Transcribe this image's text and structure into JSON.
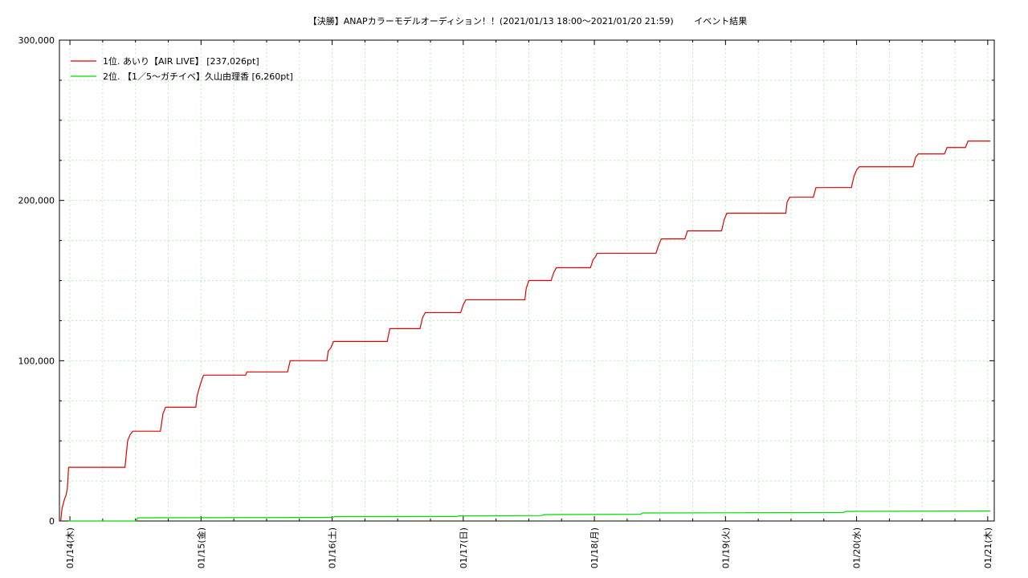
{
  "chart_data": {
    "type": "line",
    "title": "【決勝】ANAPカラーモデルオーディション！！(2021/01/13 18:00〜2021/01/20 21:59)　　 イベント結果",
    "xlabel": "",
    "ylabel": "",
    "ylim": [
      0,
      300000
    ],
    "yticks": [
      "0",
      "100,000",
      "200,000",
      "300,000"
    ],
    "xticks": [
      {
        "label": "01/14(木)",
        "day": 0
      },
      {
        "label": "01/15(金)",
        "day": 1
      },
      {
        "label": "01/16(土)",
        "day": 2
      },
      {
        "label": "01/17(日)",
        "day": 3
      },
      {
        "label": "01/18(月)",
        "day": 4
      },
      {
        "label": "01/19(火)",
        "day": 5
      },
      {
        "label": "01/20(水)",
        "day": 6
      },
      {
        "label": "01/21(木)",
        "day": 7
      }
    ],
    "xlim_days": [
      -0.08,
      7.05
    ],
    "grid": true,
    "legend_position": "top-left",
    "series": [
      {
        "name": "1位. あいり【AIR LIVE】 [237,026pt]",
        "color": "#e00000",
        "points": [
          [
            -0.07,
            0
          ],
          [
            -0.06,
            8000
          ],
          [
            -0.04,
            14000
          ],
          [
            -0.03,
            16000
          ],
          [
            -0.02,
            20000
          ],
          [
            -0.01,
            33500
          ],
          [
            0.42,
            33500
          ],
          [
            0.44,
            50000
          ],
          [
            0.46,
            54000
          ],
          [
            0.48,
            56000
          ],
          [
            0.69,
            56000
          ],
          [
            0.71,
            67000
          ],
          [
            0.73,
            71000
          ],
          [
            0.96,
            71000
          ],
          [
            0.97,
            78000
          ],
          [
            0.99,
            84000
          ],
          [
            1.01,
            89000
          ],
          [
            1.02,
            91000
          ],
          [
            1.34,
            91000
          ],
          [
            1.35,
            93000
          ],
          [
            1.66,
            93000
          ],
          [
            1.68,
            100000
          ],
          [
            1.96,
            100000
          ],
          [
            1.97,
            106000
          ],
          [
            1.99,
            108000
          ],
          [
            2.01,
            112000
          ],
          [
            2.42,
            112000
          ],
          [
            2.44,
            120000
          ],
          [
            2.67,
            120000
          ],
          [
            2.69,
            127000
          ],
          [
            2.71,
            130000
          ],
          [
            2.98,
            130000
          ],
          [
            3.0,
            135000
          ],
          [
            3.02,
            138000
          ],
          [
            3.47,
            138000
          ],
          [
            3.48,
            145000
          ],
          [
            3.5,
            150000
          ],
          [
            3.67,
            150000
          ],
          [
            3.69,
            155000
          ],
          [
            3.71,
            158000
          ],
          [
            3.97,
            158000
          ],
          [
            3.99,
            163000
          ],
          [
            4.01,
            165000
          ],
          [
            4.02,
            167000
          ],
          [
            4.47,
            167000
          ],
          [
            4.49,
            172000
          ],
          [
            4.51,
            176000
          ],
          [
            4.69,
            176000
          ],
          [
            4.71,
            181000
          ],
          [
            4.97,
            181000
          ],
          [
            4.99,
            188000
          ],
          [
            5.01,
            192000
          ],
          [
            5.46,
            192000
          ],
          [
            5.47,
            199000
          ],
          [
            5.49,
            202000
          ],
          [
            5.67,
            202000
          ],
          [
            5.69,
            208000
          ],
          [
            5.96,
            208000
          ],
          [
            5.98,
            215000
          ],
          [
            6.0,
            219000
          ],
          [
            6.02,
            221000
          ],
          [
            6.43,
            221000
          ],
          [
            6.45,
            227000
          ],
          [
            6.47,
            229000
          ],
          [
            6.67,
            229000
          ],
          [
            6.69,
            233000
          ],
          [
            6.83,
            233000
          ],
          [
            6.85,
            237026
          ],
          [
            7.02,
            237026
          ]
        ]
      },
      {
        "name": "2位. 【1／5〜ガチイベ】久山由理香 [6,260pt]",
        "color": "#00dd00",
        "points": [
          [
            -0.01,
            0
          ],
          [
            0.5,
            0
          ],
          [
            0.52,
            2000
          ],
          [
            1.9,
            2200
          ],
          [
            2.0,
            2300
          ],
          [
            2.02,
            2700
          ],
          [
            2.95,
            2800
          ],
          [
            2.97,
            3200
          ],
          [
            3.6,
            3400
          ],
          [
            3.62,
            4000
          ],
          [
            4.35,
            4200
          ],
          [
            4.37,
            5000
          ],
          [
            5.9,
            5300
          ],
          [
            5.92,
            6000
          ],
          [
            7.02,
            6260
          ]
        ]
      }
    ]
  }
}
